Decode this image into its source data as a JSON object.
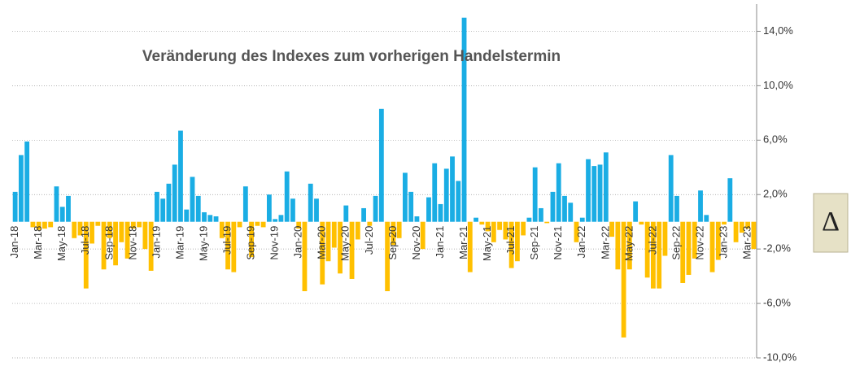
{
  "chart_data": {
    "type": "bar",
    "title": "Veränderung des Indexes zum vorherigen Handelstermin",
    "badge": "Δ",
    "categories": [
      "Jan-18",
      null,
      null,
      null,
      "Mar-18",
      null,
      null,
      null,
      "May-18",
      null,
      null,
      null,
      "Jul-18",
      null,
      null,
      null,
      "Sep-18",
      null,
      null,
      null,
      "Nov-18",
      null,
      null,
      null,
      "Jan-19",
      null,
      null,
      null,
      "Mar-19",
      null,
      null,
      null,
      "May-19",
      null,
      null,
      null,
      "Jul-19",
      null,
      null,
      null,
      "Sep-19",
      null,
      null,
      null,
      "Nov-19",
      null,
      null,
      null,
      "Jan-20",
      null,
      null,
      null,
      "Mar-20",
      null,
      null,
      null,
      "May-20",
      null,
      null,
      null,
      "Jul-20",
      null,
      null,
      null,
      "Sep-20",
      null,
      null,
      null,
      "Nov-20",
      null,
      null,
      null,
      "Jan-21",
      null,
      null,
      null,
      "Mar-21",
      null,
      null,
      null,
      "May-21",
      null,
      null,
      null,
      "Jul-21",
      null,
      null,
      null,
      "Sep-21",
      null,
      null,
      null,
      "Nov-21",
      null,
      null,
      null,
      "Jan-22",
      null,
      null,
      null,
      "Mar-22",
      null,
      null,
      null,
      "May-22",
      null,
      null,
      null,
      "Jul-22",
      null,
      null,
      null,
      "Sep-22",
      null,
      null,
      null,
      "Nov-22",
      null,
      null,
      null,
      "Jan-23",
      null,
      null,
      null,
      "Mar-23",
      null
    ],
    "values": [
      2.2,
      4.9,
      5.9,
      -0.4,
      -0.6,
      -0.5,
      -0.4,
      2.6,
      1.1,
      1.9,
      -1.2,
      -1.0,
      -4.9,
      -1.6,
      -0.3,
      -3.5,
      -1.2,
      -3.2,
      -1.5,
      -2.7,
      -0.5,
      -0.4,
      -2.0,
      -3.6,
      2.2,
      1.7,
      2.8,
      4.2,
      6.7,
      0.9,
      3.3,
      1.9,
      0.7,
      0.5,
      0.4,
      -1.2,
      -3.5,
      -3.7,
      -0.4,
      2.6,
      -2.6,
      -0.3,
      -0.4,
      2.0,
      0.2,
      0.5,
      3.7,
      1.7,
      -0.5,
      -5.1,
      2.8,
      1.7,
      -4.6,
      -2.9,
      -1.9,
      -3.8,
      1.2,
      -4.2,
      -1.3,
      1.0,
      -0.3,
      1.9,
      8.3,
      -5.1,
      -1.7,
      -1.2,
      3.6,
      2.2,
      0.4,
      -2.0,
      1.8,
      4.3,
      1.3,
      3.9,
      4.8,
      3.0,
      15.0,
      -3.7,
      0.3,
      -0.2,
      -0.7,
      -1.5,
      -0.6,
      -1.3,
      -3.4,
      -2.9,
      -1.0,
      0.3,
      4.0,
      1.0,
      -0.1,
      2.2,
      4.3,
      1.9,
      1.4,
      -1.5,
      0.3,
      4.6,
      4.1,
      4.2,
      5.1,
      -1.1,
      -3.5,
      -8.5,
      -3.5,
      1.5,
      -0.2,
      -4.1,
      -4.9,
      -4.9,
      -2.5,
      4.9,
      1.9,
      -4.5,
      -3.9,
      -2.7,
      2.3,
      0.5,
      -3.7,
      -2.8,
      -0.2,
      3.2,
      -1.5,
      -0.8,
      -0.5,
      -2.0
    ],
    "positive_color": "#1aade4",
    "negative_color": "#ffc000",
    "ylim": [
      -10,
      16
    ],
    "yticks": [
      {
        "value": -10,
        "label": "-10,0%"
      },
      {
        "value": -6,
        "label": "-6,0%"
      },
      {
        "value": -2,
        "label": "-2,0%"
      },
      {
        "value": 2,
        "label": "2,0%"
      },
      {
        "value": 6,
        "label": "6,0%"
      },
      {
        "value": 10,
        "label": "10,0%"
      },
      {
        "value": 14,
        "label": "14,0%"
      }
    ],
    "grid": true
  }
}
